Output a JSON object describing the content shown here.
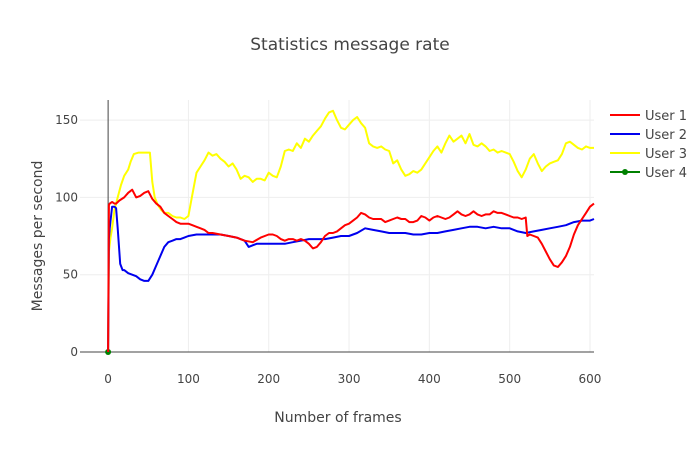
{
  "chart_data": {
    "type": "line",
    "title": "Statistics message rate",
    "xlabel": "Number of frames",
    "ylabel": "Messages per second",
    "xlim": [
      -35,
      605
    ],
    "ylim": [
      0,
      163
    ],
    "xticks": [
      0,
      100,
      200,
      300,
      400,
      500,
      600
    ],
    "yticks": [
      0,
      50,
      100,
      150
    ],
    "grid": true,
    "legend_position": "top-right",
    "series": [
      {
        "name": "User 1",
        "color": "#ff0000",
        "x": [
          0,
          1,
          2,
          5,
          8,
          10,
          14,
          20,
          25,
          30,
          35,
          40,
          45,
          50,
          55,
          60,
          65,
          70,
          75,
          80,
          85,
          90,
          95,
          100,
          105,
          110,
          115,
          120,
          125,
          130,
          140,
          150,
          160,
          170,
          180,
          190,
          200,
          205,
          210,
          215,
          220,
          225,
          230,
          235,
          240,
          245,
          250,
          255,
          260,
          265,
          270,
          275,
          280,
          285,
          290,
          295,
          300,
          305,
          310,
          315,
          320,
          325,
          330,
          335,
          340,
          345,
          350,
          355,
          360,
          365,
          370,
          375,
          380,
          385,
          390,
          395,
          400,
          405,
          410,
          415,
          420,
          425,
          430,
          435,
          440,
          445,
          450,
          455,
          460,
          465,
          470,
          475,
          480,
          485,
          490,
          495,
          500,
          505,
          510,
          515,
          520,
          522,
          525,
          530,
          535,
          540,
          545,
          550,
          555,
          560,
          565,
          570,
          575,
          580,
          585,
          590,
          595,
          600,
          605
        ],
        "y": [
          0,
          95,
          96,
          97,
          96,
          96,
          98,
          100,
          103,
          105,
          100,
          101,
          103,
          104,
          99,
          96,
          94,
          90,
          88,
          86,
          84,
          83,
          83,
          83,
          82,
          81,
          80,
          79,
          77,
          77,
          76,
          75,
          74,
          72,
          71,
          74,
          76,
          76,
          75,
          73,
          72,
          73,
          73,
          72,
          73,
          72,
          70,
          67,
          68,
          71,
          75,
          77,
          77,
          78,
          80,
          82,
          83,
          85,
          87,
          90,
          89,
          87,
          86,
          86,
          86,
          84,
          85,
          86,
          87,
          86,
          86,
          84,
          84,
          85,
          88,
          87,
          85,
          87,
          88,
          87,
          86,
          87,
          89,
          91,
          89,
          88,
          89,
          91,
          89,
          88,
          89,
          89,
          91,
          90,
          90,
          89,
          88,
          87,
          87,
          86,
          87,
          75,
          76,
          75,
          74,
          70,
          65,
          60,
          56,
          55,
          58,
          62,
          68,
          76,
          82,
          86,
          90,
          94,
          96
        ]
      },
      {
        "name": "User 2",
        "color": "#0000ee",
        "x": [
          0,
          1,
          2,
          5,
          8,
          10,
          12,
          15,
          18,
          20,
          25,
          30,
          35,
          40,
          45,
          50,
          55,
          60,
          65,
          70,
          75,
          80,
          85,
          90,
          95,
          100,
          110,
          120,
          130,
          140,
          150,
          160,
          170,
          175,
          180,
          185,
          190,
          200,
          210,
          220,
          230,
          240,
          250,
          260,
          270,
          280,
          290,
          300,
          310,
          320,
          330,
          340,
          350,
          360,
          370,
          380,
          390,
          400,
          410,
          420,
          430,
          440,
          450,
          460,
          470,
          480,
          490,
          500,
          510,
          520,
          530,
          540,
          550,
          560,
          570,
          580,
          590,
          600,
          605
        ],
        "y": [
          0,
          73,
          80,
          94,
          94,
          93,
          80,
          57,
          53,
          53,
          51,
          50,
          49,
          47,
          46,
          46,
          50,
          56,
          62,
          68,
          71,
          72,
          73,
          73,
          74,
          75,
          76,
          76,
          76,
          76,
          75,
          74,
          72,
          68,
          69,
          70,
          70,
          70,
          70,
          70,
          71,
          72,
          73,
          73,
          73,
          74,
          75,
          75,
          77,
          80,
          79,
          78,
          77,
          77,
          77,
          76,
          76,
          77,
          77,
          78,
          79,
          80,
          81,
          81,
          80,
          81,
          80,
          80,
          78,
          77,
          78,
          79,
          80,
          81,
          82,
          84,
          85,
          85,
          86
        ]
      },
      {
        "name": "User 3",
        "color": "#ffff00",
        "x": [
          0,
          1,
          3,
          5,
          8,
          12,
          16,
          20,
          25,
          28,
          32,
          38,
          45,
          52,
          55,
          58,
          62,
          66,
          70,
          75,
          80,
          85,
          90,
          95,
          100,
          105,
          110,
          115,
          120,
          125,
          130,
          135,
          140,
          145,
          150,
          155,
          160,
          165,
          170,
          175,
          180,
          185,
          190,
          195,
          200,
          205,
          210,
          215,
          220,
          225,
          230,
          235,
          240,
          245,
          250,
          255,
          260,
          265,
          270,
          275,
          280,
          285,
          290,
          295,
          300,
          305,
          310,
          315,
          320,
          325,
          330,
          335,
          340,
          345,
          350,
          355,
          360,
          365,
          370,
          375,
          380,
          385,
          390,
          395,
          400,
          405,
          410,
          415,
          420,
          425,
          430,
          435,
          440,
          445,
          450,
          455,
          460,
          465,
          470,
          475,
          480,
          485,
          490,
          495,
          500,
          505,
          510,
          515,
          520,
          525,
          530,
          535,
          540,
          545,
          550,
          555,
          560,
          565,
          570,
          575,
          580,
          585,
          590,
          595,
          600,
          605
        ],
        "y": [
          0,
          65,
          74,
          80,
          92,
          100,
          108,
          114,
          118,
          123,
          128,
          129,
          129,
          129,
          110,
          100,
          95,
          92,
          90,
          90,
          88,
          87,
          87,
          86,
          88,
          102,
          116,
          120,
          124,
          129,
          127,
          128,
          125,
          123,
          120,
          122,
          118,
          112,
          114,
          113,
          110,
          112,
          112,
          111,
          116,
          114,
          113,
          120,
          130,
          131,
          130,
          135,
          132,
          138,
          136,
          140,
          143,
          146,
          151,
          155,
          156,
          150,
          145,
          144,
          147,
          150,
          152,
          148,
          145,
          135,
          133,
          132,
          133,
          131,
          130,
          122,
          124,
          118,
          114,
          115,
          117,
          116,
          118,
          122,
          126,
          130,
          133,
          129,
          135,
          140,
          136,
          138,
          140,
          135,
          141,
          134,
          133,
          135,
          133,
          130,
          131,
          129,
          130,
          129,
          128,
          123,
          117,
          113,
          118,
          125,
          128,
          122,
          117,
          120,
          122,
          123,
          124,
          128,
          135,
          136,
          134,
          132,
          131,
          133,
          132,
          132
        ]
      },
      {
        "name": "User 4",
        "color": "#008000",
        "mode": "lines+markers",
        "x": [
          0
        ],
        "y": [
          0
        ]
      }
    ]
  }
}
